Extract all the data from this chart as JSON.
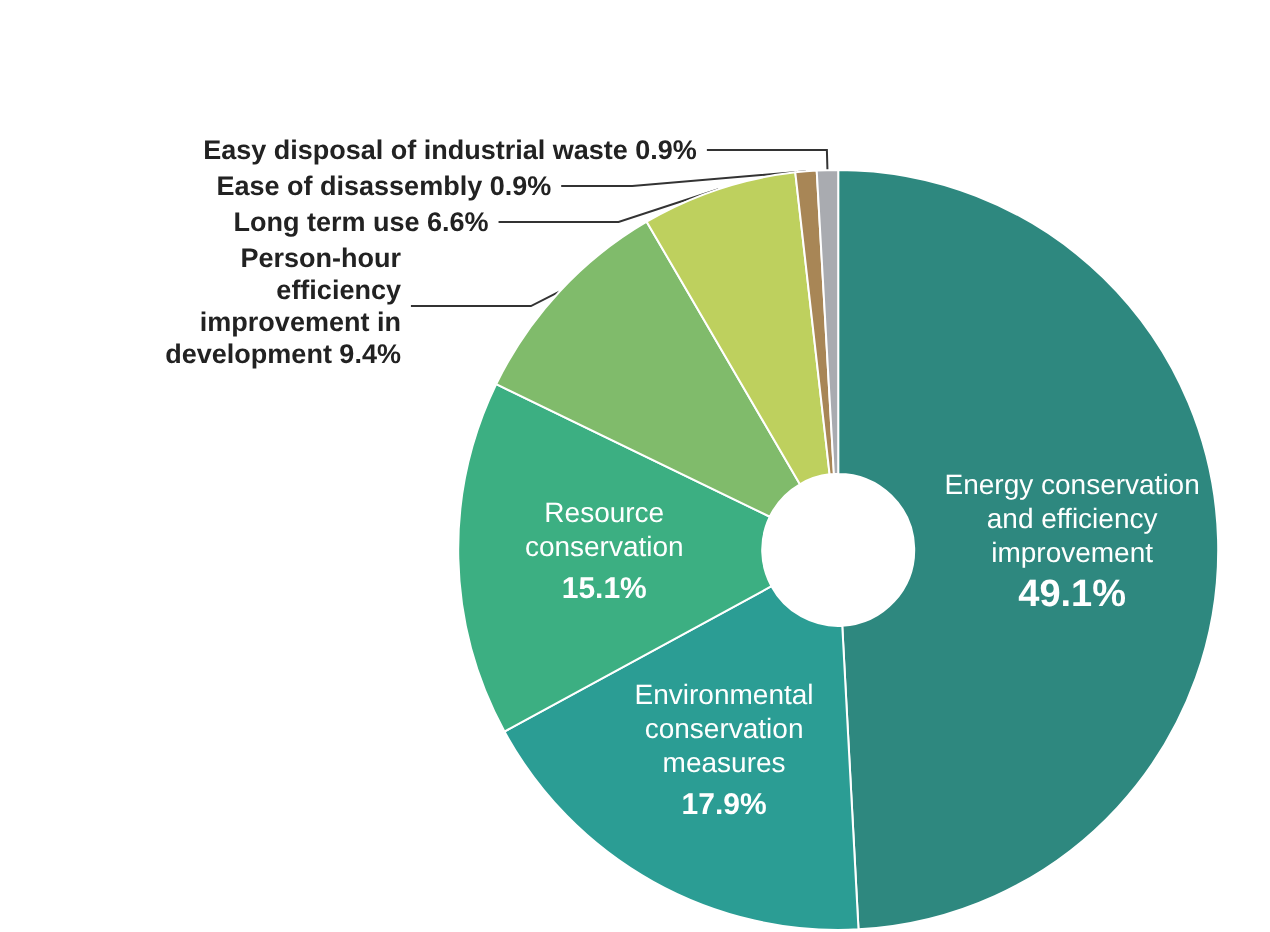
{
  "chart_data": {
    "type": "donut",
    "categories": [
      "Energy conservation and efficiency improvement",
      "Environmental conservation measures",
      "Resource conservation",
      "Person-hour efficiency improvement in development",
      "Long term use",
      "Ease of disassembly",
      "Easy disposal of industrial waste"
    ],
    "values": [
      49.1,
      17.9,
      15.1,
      9.4,
      6.6,
      0.9,
      0.9
    ],
    "value_labels": [
      "49.1%",
      "17.9%",
      "15.1%",
      "9.4%",
      "6.6%",
      "0.9%",
      "0.9%"
    ],
    "colors": [
      "#2e887f",
      "#2b9d94",
      "#3caf82",
      "#80bb6b",
      "#bed05e",
      "#a88656",
      "#a9abb0"
    ],
    "legend": false
  }
}
